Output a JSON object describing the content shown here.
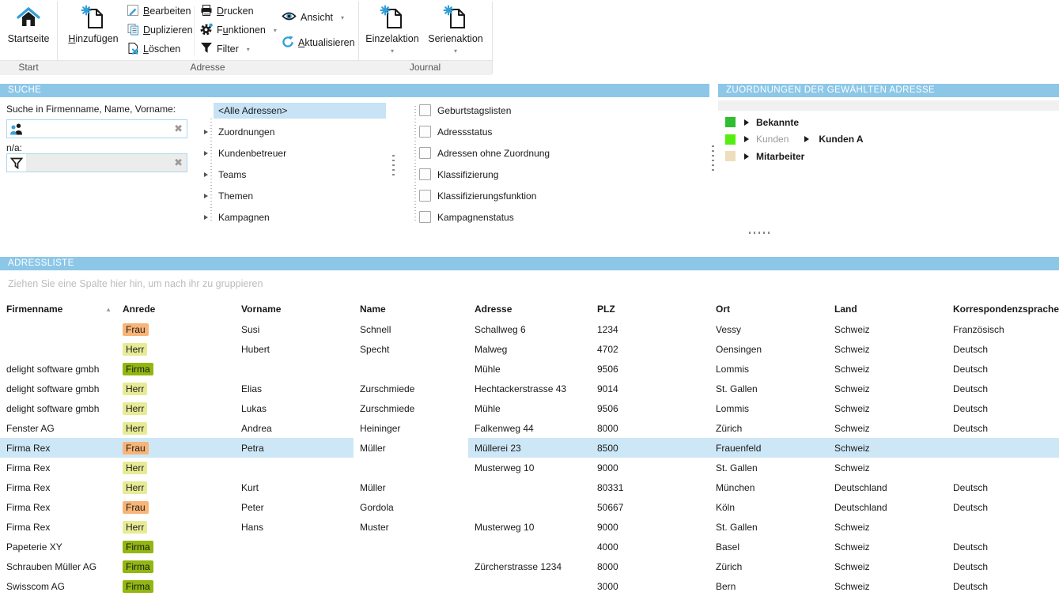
{
  "ribbon": {
    "groups": {
      "start": "Start",
      "adresse": "Adresse",
      "journal": "Journal"
    },
    "buttons": {
      "startseite": "Startseite",
      "hinzufuegen": "Hinzufügen",
      "bearbeiten": "Bearbeiten",
      "duplizieren": "Duplizieren",
      "loeschen": "Löschen",
      "drucken": "Drucken",
      "funktionen": "Funktionen",
      "filter": "Filter",
      "ansicht": "Ansicht",
      "aktualisieren": "Aktualisieren",
      "einzelaktion": "Einzelaktion",
      "serienaktion": "Serienaktion"
    },
    "icons": {
      "startseite": "home-icon",
      "hinzufuegen": "new-document-sparkle-icon",
      "bearbeiten": "edit-pencil-icon",
      "duplizieren": "duplicate-pages-icon",
      "loeschen": "delete-document-icon",
      "drucken": "printer-icon",
      "funktionen": "gear-icon",
      "filter": "funnel-icon",
      "ansicht": "eye-icon",
      "aktualisieren": "refresh-icon",
      "einzelaktion": "new-document-sparkle-icon",
      "serienaktion": "new-document-sparkle-icon"
    }
  },
  "suche": {
    "title": "SUCHE",
    "search_label": "Suche in Firmenname, Name, Vorname:",
    "search_value": "",
    "na_label": "n/a:",
    "filter_value": ""
  },
  "tree": {
    "selected": "<Alle Adressen>",
    "items": [
      "<Alle Adressen>",
      "Zuordnungen",
      "Kundenbetreuer",
      "Teams",
      "Themen",
      "Kampagnen"
    ]
  },
  "filter_tree": {
    "items": [
      "Geburtstagslisten",
      "Adressstatus",
      "Adressen ohne Zuordnung",
      "Klassifizierung",
      "Klassifizierungsfunktion",
      "Kampagnenstatus"
    ]
  },
  "zuordnungen": {
    "title": "ZUORDNUNGEN DER GEWÄHLTEN ADRESSE",
    "items": [
      {
        "label": "Bekannte",
        "color": "#2fbe2f"
      },
      {
        "label": "Kunden",
        "muted": true,
        "color": "#55ee11",
        "sub": "Kunden A"
      },
      {
        "label": "Mitarbeiter",
        "color": "#efdebe"
      }
    ]
  },
  "adressliste": {
    "title": "ADRESSLISTE",
    "group_hint": "Ziehen Sie eine Spalte hier hin, um nach ihr zu gruppieren",
    "sort_column": "Firmenname",
    "sort_direction": "ascending",
    "columns": [
      "Firmenname",
      "Anrede",
      "Vorname",
      "Name",
      "Adresse",
      "PLZ",
      "Ort",
      "Land",
      "Korrespondenzsprache"
    ],
    "anrede_colors": {
      "Frau": "#f8b577",
      "Herr": "#e8eb96",
      "Firma": "#93b711"
    },
    "rows": [
      {
        "firmenname": "",
        "anrede": "Frau",
        "vorname": "Susi",
        "name": "Schnell",
        "adresse": "Schallweg 6",
        "plz": "1234",
        "ort": "Vessy",
        "land": "Schweiz",
        "sprache": "Französisch",
        "selected": false
      },
      {
        "firmenname": "",
        "anrede": "Herr",
        "vorname": "Hubert",
        "name": "Specht",
        "adresse": "Malweg",
        "plz": "4702",
        "ort": "Oensingen",
        "land": "Schweiz",
        "sprache": "Deutsch",
        "selected": false
      },
      {
        "firmenname": "delight software gmbh",
        "anrede": "Firma",
        "vorname": "",
        "name": "",
        "adresse": "Mühle",
        "plz": "9506",
        "ort": "Lommis",
        "land": "Schweiz",
        "sprache": "Deutsch",
        "selected": false
      },
      {
        "firmenname": "delight software gmbh",
        "anrede": "Herr",
        "vorname": "Elias",
        "name": "Zurschmiede",
        "adresse": "Hechtackerstrasse 43",
        "plz": "9014",
        "ort": "St. Gallen",
        "land": "Schweiz",
        "sprache": "Deutsch",
        "selected": false
      },
      {
        "firmenname": "delight software gmbh",
        "anrede": "Herr",
        "vorname": "Lukas",
        "name": "Zurschmiede",
        "adresse": "Mühle",
        "plz": "9506",
        "ort": "Lommis",
        "land": "Schweiz",
        "sprache": "Deutsch",
        "selected": false
      },
      {
        "firmenname": "Fenster AG",
        "anrede": "Herr",
        "vorname": "Andrea",
        "name": "Heininger",
        "adresse": "Falkenweg 44",
        "plz": "8000",
        "ort": "Zürich",
        "land": "Schweiz",
        "sprache": "Deutsch",
        "selected": false
      },
      {
        "firmenname": "Firma Rex",
        "anrede": "Frau",
        "vorname": "Petra",
        "name": "Müller",
        "adresse": "Müllerei 23",
        "plz": "8500",
        "ort": "Frauenfeld",
        "land": "Schweiz",
        "sprache": "",
        "selected": true
      },
      {
        "firmenname": "Firma Rex",
        "anrede": "Herr",
        "vorname": "",
        "name": "",
        "adresse": "Musterweg 10",
        "plz": "9000",
        "ort": "St. Gallen",
        "land": "Schweiz",
        "sprache": "",
        "selected": false
      },
      {
        "firmenname": "Firma Rex",
        "anrede": "Herr",
        "vorname": "Kurt",
        "name": "Müller",
        "adresse": "",
        "plz": "80331",
        "ort": "München",
        "land": "Deutschland",
        "sprache": "Deutsch",
        "selected": false
      },
      {
        "firmenname": "Firma Rex",
        "anrede": "Frau",
        "vorname": "Peter",
        "name": "Gordola",
        "adresse": "",
        "plz": "50667",
        "ort": "Köln",
        "land": "Deutschland",
        "sprache": "Deutsch",
        "selected": false
      },
      {
        "firmenname": "Firma Rex",
        "anrede": "Herr",
        "vorname": "Hans",
        "name": "Muster",
        "adresse": "Musterweg 10",
        "plz": "9000",
        "ort": "St. Gallen",
        "land": "Schweiz",
        "sprache": "",
        "selected": false
      },
      {
        "firmenname": "Papeterie XY",
        "anrede": "Firma",
        "vorname": "",
        "name": "",
        "adresse": "",
        "plz": "4000",
        "ort": "Basel",
        "land": "Schweiz",
        "sprache": "Deutsch",
        "selected": false
      },
      {
        "firmenname": "Schrauben Müller AG",
        "anrede": "Firma",
        "vorname": "",
        "name": "",
        "adresse": "Zürcherstrasse 1234",
        "plz": "8000",
        "ort": "Zürich",
        "land": "Schweiz",
        "sprache": "Deutsch",
        "selected": false
      },
      {
        "firmenname": "Swisscom AG",
        "anrede": "Firma",
        "vorname": "",
        "name": "",
        "adresse": "",
        "plz": "3000",
        "ort": "Bern",
        "land": "Schweiz",
        "sprache": "Deutsch",
        "selected": false
      }
    ]
  },
  "colors": {
    "panel_header_blue": "#8cc7e8",
    "row_selection_blue": "#cde7f7",
    "tree_selection_blue": "#c7e3f5",
    "accent_blue": "#2f9fd8"
  }
}
